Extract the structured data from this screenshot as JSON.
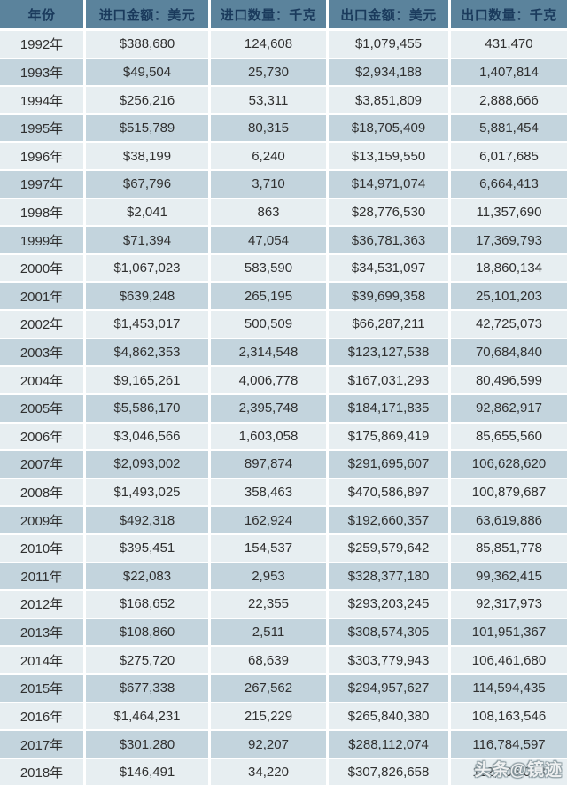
{
  "chart_data": {
    "type": "table",
    "title": "",
    "columns": [
      "年份",
      "进口金额：美元",
      "进口数量：千克",
      "出口金额：美元",
      "出口数量：千克"
    ],
    "rows": [
      [
        "1992年",
        "$388,680",
        "124,608",
        "$1,079,455",
        "431,470"
      ],
      [
        "1993年",
        "$49,504",
        "25,730",
        "$2,934,188",
        "1,407,814"
      ],
      [
        "1994年",
        "$256,216",
        "53,311",
        "$3,851,809",
        "2,888,666"
      ],
      [
        "1995年",
        "$515,789",
        "80,315",
        "$18,705,409",
        "5,881,454"
      ],
      [
        "1996年",
        "$38,199",
        "6,240",
        "$13,159,550",
        "6,017,685"
      ],
      [
        "1997年",
        "$67,796",
        "3,710",
        "$14,971,074",
        "6,664,413"
      ],
      [
        "1998年",
        "$2,041",
        "863",
        "$28,776,530",
        "11,357,690"
      ],
      [
        "1999年",
        "$71,394",
        "47,054",
        "$36,781,363",
        "17,369,793"
      ],
      [
        "2000年",
        "$1,067,023",
        "583,590",
        "$34,531,097",
        "18,860,134"
      ],
      [
        "2001年",
        "$639,248",
        "265,195",
        "$39,699,358",
        "25,101,203"
      ],
      [
        "2002年",
        "$1,453,017",
        "500,509",
        "$66,287,211",
        "42,725,073"
      ],
      [
        "2003年",
        "$4,862,353",
        "2,314,548",
        "$123,127,538",
        "70,684,840"
      ],
      [
        "2004年",
        "$9,165,261",
        "4,006,778",
        "$167,031,293",
        "80,496,599"
      ],
      [
        "2005年",
        "$5,586,170",
        "2,395,748",
        "$184,171,835",
        "92,862,917"
      ],
      [
        "2006年",
        "$3,046,566",
        "1,603,058",
        "$175,869,419",
        "85,655,560"
      ],
      [
        "2007年",
        "$2,093,002",
        "897,874",
        "$291,695,607",
        "106,628,620"
      ],
      [
        "2008年",
        "$1,493,025",
        "358,463",
        "$470,586,897",
        "100,879,687"
      ],
      [
        "2009年",
        "$492,318",
        "162,924",
        "$192,660,357",
        "63,619,886"
      ],
      [
        "2010年",
        "$395,451",
        "154,537",
        "$259,579,642",
        "85,851,778"
      ],
      [
        "2011年",
        "$22,083",
        "2,953",
        "$328,377,180",
        "99,362,415"
      ],
      [
        "2012年",
        "$168,652",
        "22,355",
        "$293,203,245",
        "92,317,973"
      ],
      [
        "2013年",
        "$108,860",
        "2,511",
        "$308,574,305",
        "101,951,367"
      ],
      [
        "2014年",
        "$275,720",
        "68,639",
        "$303,779,943",
        "106,461,680"
      ],
      [
        "2015年",
        "$677,338",
        "267,562",
        "$294,957,627",
        "114,594,435"
      ],
      [
        "2016年",
        "$1,464,231",
        "215,229",
        "$265,840,380",
        "108,163,546"
      ],
      [
        "2017年",
        "$301,280",
        "92,207",
        "$288,112,074",
        "116,784,597"
      ],
      [
        "2018年",
        "$146,491",
        "34,220",
        "$307,826,658",
        "112,706,088"
      ]
    ]
  },
  "watermark": {
    "text": "头条@镜迹"
  },
  "colors": {
    "header_bg": "#5b839c",
    "header_text": "#1a3a5c",
    "row_light": "#e7eef1",
    "row_dark": "#c3d4dd",
    "separator": "#ffffff",
    "cell_text": "#303030"
  }
}
